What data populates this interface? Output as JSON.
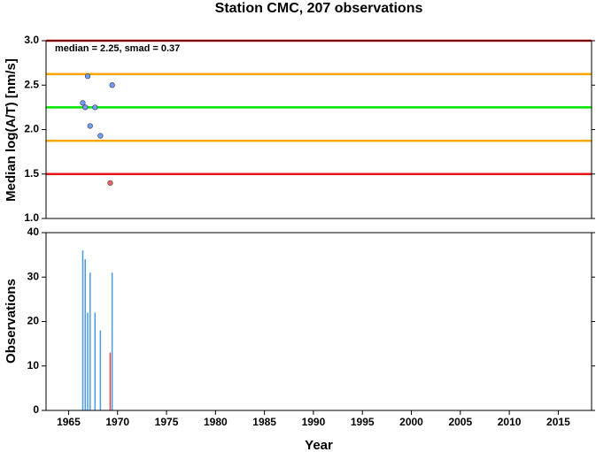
{
  "chart_data": [
    {
      "type": "scatter",
      "title": "Station CMC, 207 observations",
      "annotation": "median = 2.25, smad = 0.37",
      "ylabel": "Median log(A/T) [nm/s]",
      "x": [
        1966.45,
        1966.7,
        1966.95,
        1967.2,
        1967.7,
        1968.25,
        1969.25,
        1969.45
      ],
      "values": [
        2.3,
        2.25,
        2.6,
        2.04,
        2.25,
        1.93,
        1.4,
        2.5
      ],
      "colors": [
        "#6f9eff",
        "#6f9eff",
        "#6f9eff",
        "#6f9eff",
        "#6f9eff",
        "#6f9eff",
        "#f06060",
        "#6f9eff"
      ],
      "reference_lines": [
        {
          "value": 3.0,
          "color": "#e8151b"
        },
        {
          "value": 2.625,
          "color": "#ffa500"
        },
        {
          "value": 2.25,
          "color": "#00e600"
        },
        {
          "value": 1.875,
          "color": "#ffa500"
        },
        {
          "value": 1.5,
          "color": "#e8151b"
        }
      ],
      "xlim": [
        1962.7,
        2018.4
      ],
      "ylim": [
        1.0,
        3.0
      ],
      "yticks": [
        {
          "value": 1.0,
          "label": "1.0"
        },
        {
          "value": 1.5,
          "label": "1.5"
        },
        {
          "value": 2.0,
          "label": "2.0"
        },
        {
          "value": 2.5,
          "label": "2.5"
        },
        {
          "value": 3.0,
          "label": "3.0"
        }
      ]
    },
    {
      "type": "bar",
      "xlabel": "Year",
      "ylabel": "Observations",
      "x": [
        1966.45,
        1966.7,
        1966.95,
        1967.2,
        1967.7,
        1968.25,
        1969.25,
        1969.45
      ],
      "values": [
        36,
        34,
        22,
        31,
        22,
        18,
        13,
        31
      ],
      "colors": [
        "#4a9be0",
        "#4a9be0",
        "#4a9be0",
        "#4a9be0",
        "#4a9be0",
        "#4a9be0",
        "#e04040",
        "#4a9be0"
      ],
      "xlim": [
        1962.7,
        2018.4
      ],
      "ylim": [
        0,
        40
      ],
      "yticks": [
        0,
        10,
        20,
        30,
        40
      ],
      "xticks": [
        1965,
        1970,
        1975,
        1980,
        1985,
        1990,
        1995,
        2000,
        2005,
        2010,
        2015
      ]
    }
  ]
}
